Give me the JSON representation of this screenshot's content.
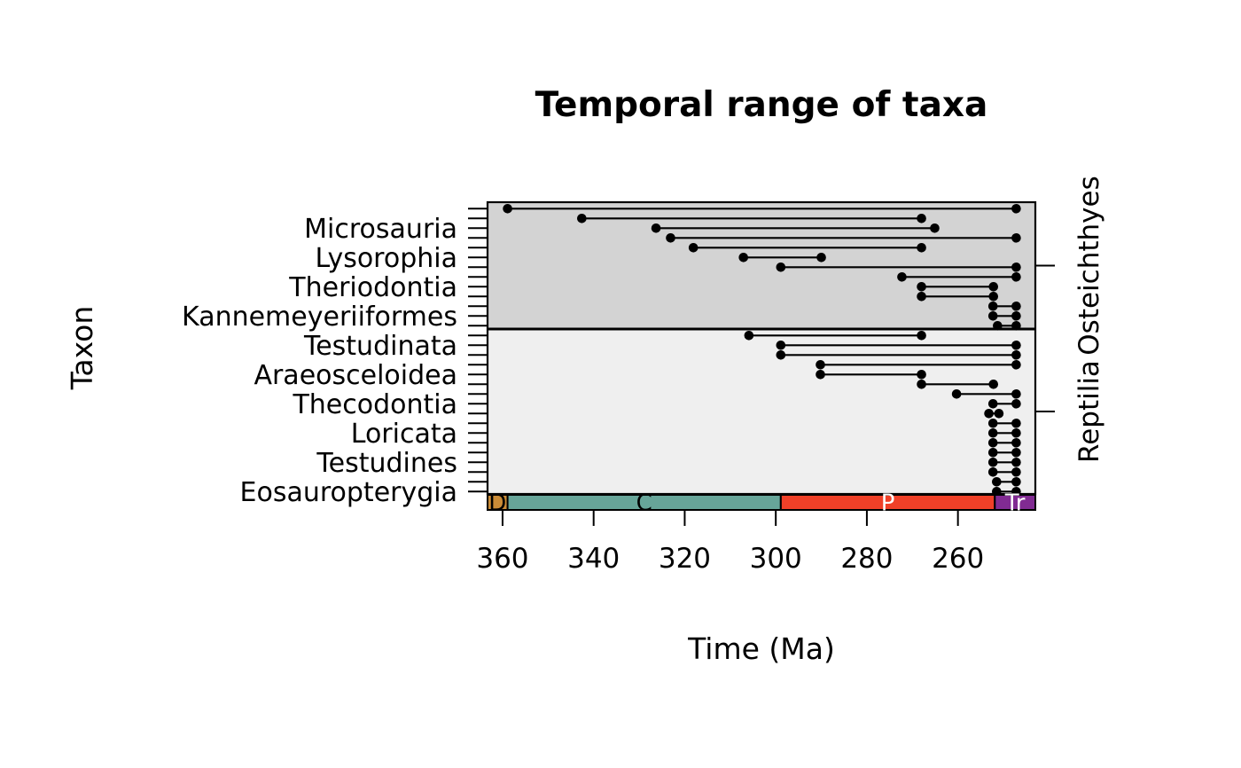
{
  "chart_data": {
    "type": "range",
    "title": "Temporal range of taxa",
    "xlabel": "Time (Ma)",
    "ylabel": "Taxon",
    "x_ticks": [
      360,
      340,
      320,
      300,
      280,
      260
    ],
    "x_range_ma": [
      363.3,
      243.0
    ],
    "x_axis_direction": "time decreasing to the right",
    "grid": false,
    "groups": [
      {
        "name": "Osteichthyes",
        "fill": "#d3d3d3"
      },
      {
        "name": "Reptilia",
        "fill": "#efefef"
      }
    ],
    "geo_timescale": [
      {
        "abbr": "D",
        "from": 363.3,
        "to": 358.9,
        "color": "#CB8C37",
        "text_color": "#000000"
      },
      {
        "abbr": "C",
        "from": 358.9,
        "to": 298.9,
        "color": "#67A599",
        "text_color": "#000000"
      },
      {
        "abbr": "P",
        "from": 298.9,
        "to": 251.9,
        "color": "#F04028",
        "text_color": "#ffffff"
      },
      {
        "abbr": "Tr",
        "from": 251.9,
        "to": 243.0,
        "color": "#812B92",
        "text_color": "#ffffff"
      }
    ],
    "series": [
      {
        "label": "",
        "group": "Osteichthyes",
        "fad": 358.9,
        "lad": 247.2
      },
      {
        "label": "",
        "group": "Osteichthyes",
        "fad": 342.6,
        "lad": 268.0
      },
      {
        "label": "Microsauria",
        "group": "Osteichthyes",
        "fad": 326.3,
        "lad": 265.1
      },
      {
        "label": "",
        "group": "Osteichthyes",
        "fad": 323.1,
        "lad": 247.2
      },
      {
        "label": "",
        "group": "Osteichthyes",
        "fad": 318.1,
        "lad": 268.0
      },
      {
        "label": "Lysorophia",
        "group": "Osteichthyes",
        "fad": 307.1,
        "lad": 290.0
      },
      {
        "label": "",
        "group": "Osteichthyes",
        "fad": 298.9,
        "lad": 247.2
      },
      {
        "label": "",
        "group": "Osteichthyes",
        "fad": 272.3,
        "lad": 247.2
      },
      {
        "label": "Theriodontia",
        "group": "Osteichthyes",
        "fad": 268.0,
        "lad": 252.2
      },
      {
        "label": "",
        "group": "Osteichthyes",
        "fad": 268.0,
        "lad": 252.2
      },
      {
        "label": "",
        "group": "Osteichthyes",
        "fad": 252.3,
        "lad": 247.2
      },
      {
        "label": "Kannemeyeriiformes",
        "group": "Osteichthyes",
        "fad": 252.3,
        "lad": 247.2
      },
      {
        "label": "",
        "group": "Osteichthyes",
        "fad": 251.3,
        "lad": 247.2
      },
      {
        "label": "",
        "group": "Reptilia",
        "fad": 305.9,
        "lad": 268.0
      },
      {
        "label": "Testudinata",
        "group": "Reptilia",
        "fad": 298.9,
        "lad": 247.2
      },
      {
        "label": "",
        "group": "Reptilia",
        "fad": 298.9,
        "lad": 247.2
      },
      {
        "label": "",
        "group": "Reptilia",
        "fad": 290.2,
        "lad": 247.2
      },
      {
        "label": "Araeosceloidea",
        "group": "Reptilia",
        "fad": 290.2,
        "lad": 268.0
      },
      {
        "label": "",
        "group": "Reptilia",
        "fad": 268.0,
        "lad": 252.2
      },
      {
        "label": "",
        "group": "Reptilia",
        "fad": 260.3,
        "lad": 247.2
      },
      {
        "label": "Thecodontia",
        "group": "Reptilia",
        "fad": 252.3,
        "lad": 247.2
      },
      {
        "label": "",
        "group": "Reptilia",
        "fad": 253.2,
        "lad": 251.0
      },
      {
        "label": "",
        "group": "Reptilia",
        "fad": 252.3,
        "lad": 247.2
      },
      {
        "label": "Loricata",
        "group": "Reptilia",
        "fad": 252.3,
        "lad": 247.2
      },
      {
        "label": "",
        "group": "Reptilia",
        "fad": 252.3,
        "lad": 247.2
      },
      {
        "label": "",
        "group": "Reptilia",
        "fad": 252.3,
        "lad": 247.2
      },
      {
        "label": "Testudines",
        "group": "Reptilia",
        "fad": 252.3,
        "lad": 247.2
      },
      {
        "label": "",
        "group": "Reptilia",
        "fad": 252.3,
        "lad": 247.2
      },
      {
        "label": "",
        "group": "Reptilia",
        "fad": 251.5,
        "lad": 247.2
      },
      {
        "label": "Eosauropterygia",
        "group": "Reptilia",
        "fad": 251.5,
        "lad": 247.2
      }
    ],
    "style": {
      "range_line_color": "#000000",
      "dot_color": "#000000",
      "frame_color": "#000000",
      "background": "#ffffff"
    }
  }
}
